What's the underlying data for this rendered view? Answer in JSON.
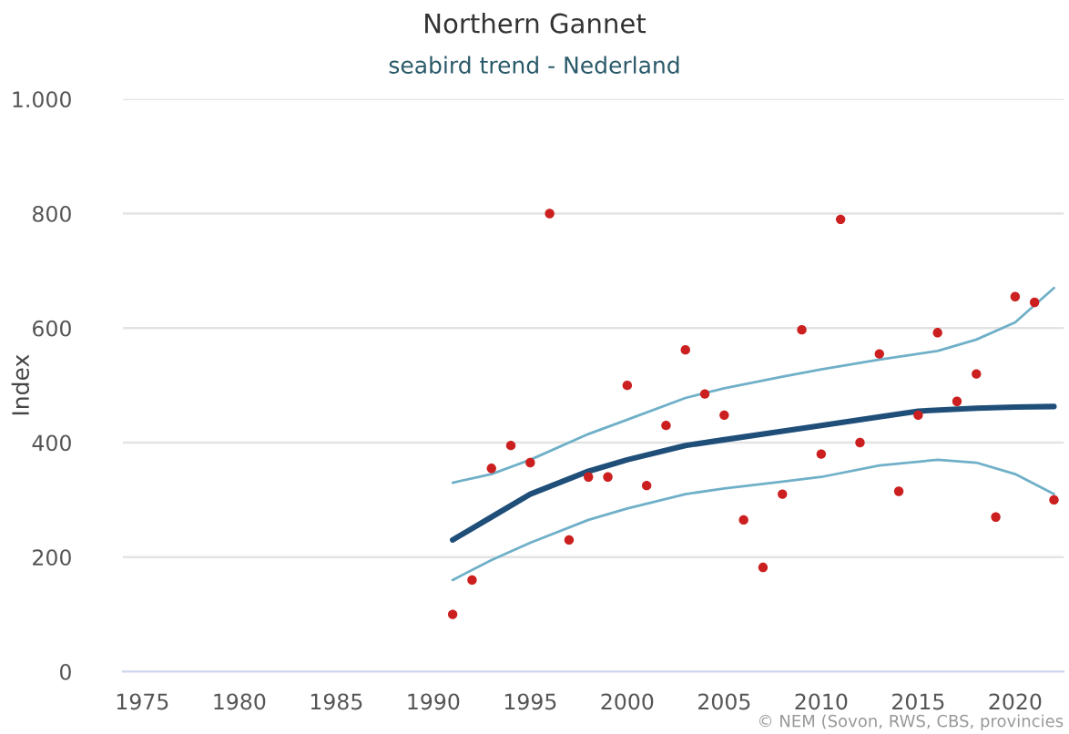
{
  "chart_data": {
    "type": "scatter",
    "title": "Northern Gannet",
    "subtitle": "seabird trend - Nederland",
    "ylabel": "Index",
    "annotations": [
      "© NEM (Sovon, RWS, CBS, provincies"
    ],
    "xlim": [
      1974,
      2022.5
    ],
    "xticks": [
      1975,
      1980,
      1985,
      1990,
      1995,
      2000,
      2005,
      2010,
      2015,
      2020
    ],
    "ylim": [
      0,
      1000
    ],
    "yticks": [
      0,
      200,
      400,
      600,
      800,
      {
        "value": 1000,
        "label": "1.000"
      }
    ],
    "grid": "y",
    "series": [
      {
        "marker": "circle",
        "color": "#cc1f1f",
        "x": [
          1991,
          1992,
          1993,
          1994,
          1995,
          1996,
          1997,
          1998,
          1999,
          2000,
          2001,
          2002,
          2003,
          2004,
          2005,
          2006,
          2007,
          2008,
          2009,
          2010,
          2011,
          2012,
          2013,
          2014,
          2015,
          2016,
          2017,
          2018,
          2019,
          2020,
          2021,
          2022
        ],
        "values": [
          100,
          160,
          355,
          395,
          365,
          800,
          230,
          340,
          340,
          500,
          325,
          430,
          562,
          485,
          448,
          265,
          182,
          310,
          597,
          380,
          790,
          400,
          555,
          315,
          448,
          592,
          472,
          520,
          270,
          655,
          645,
          300
        ]
      },
      {
        "type": "line",
        "color": "#1f4e79",
        "line_style": "solid",
        "x": [
          1991,
          1993,
          1995,
          1998,
          2000,
          2003,
          2005,
          2008,
          2010,
          2013,
          2015,
          2018,
          2020,
          2022
        ],
        "values": [
          230,
          270,
          310,
          350,
          370,
          395,
          405,
          420,
          430,
          445,
          455,
          460,
          462,
          463
        ]
      },
      {
        "type": "line",
        "color": "#6fb0c8",
        "line_style": "solid",
        "x": [
          1991,
          1993,
          1995,
          1998,
          2000,
          2003,
          2005,
          2008,
          2010,
          2013,
          2016,
          2018,
          2020,
          2022
        ],
        "values": [
          330,
          345,
          370,
          415,
          440,
          478,
          495,
          515,
          528,
          545,
          560,
          580,
          610,
          670
        ]
      },
      {
        "type": "line",
        "color": "#6fb0c8",
        "line_style": "solid",
        "x": [
          1991,
          1993,
          1995,
          1998,
          2000,
          2003,
          2005,
          2008,
          2010,
          2013,
          2016,
          2018,
          2020,
          2022
        ],
        "values": [
          160,
          195,
          225,
          265,
          285,
          310,
          320,
          332,
          340,
          360,
          370,
          365,
          345,
          310
        ]
      }
    ]
  }
}
